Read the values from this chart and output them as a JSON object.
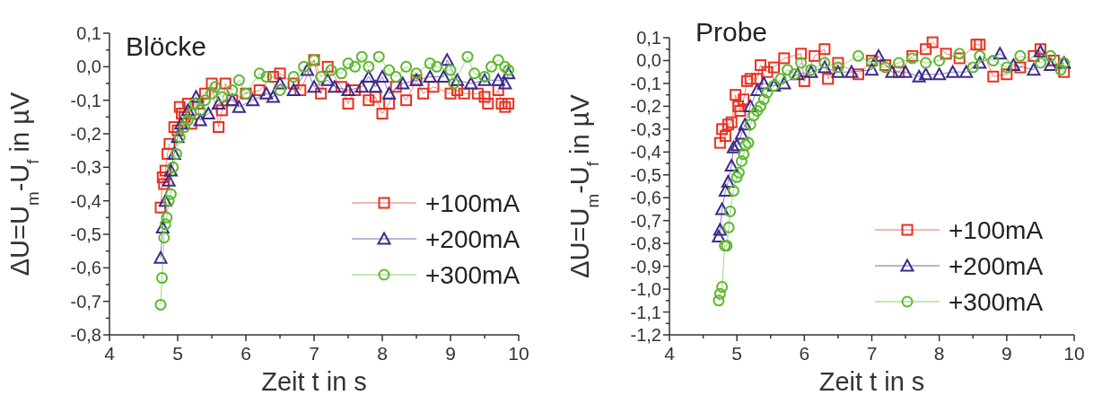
{
  "chart_data": [
    {
      "type": "line",
      "title": "Blöcke",
      "xlabel": "Zeit t in s",
      "ylabel": "ΔU=U$_{m}$-U$_{f}$ in µV",
      "legend": "bottom right",
      "xlim": [
        4,
        10
      ],
      "ylim": [
        -0.8,
        0.1
      ],
      "xticks": [
        4,
        {
          "value": 4.5,
          "label": null
        },
        5,
        {
          "value": 5.5,
          "label": null
        },
        6,
        {
          "value": 6.5,
          "label": null
        },
        7,
        {
          "value": 7.5,
          "label": null
        },
        8,
        {
          "value": 8.5,
          "label": null
        },
        9,
        {
          "value": 9.5,
          "label": null
        },
        10
      ],
      "yticks": [
        {
          "value": -0.8,
          "label": "-0,8"
        },
        {
          "value": -0.75,
          "label": null
        },
        {
          "value": -0.7,
          "label": "-0,7"
        },
        {
          "value": -0.65,
          "label": null
        },
        {
          "value": -0.6,
          "label": "-0,6"
        },
        {
          "value": -0.55,
          "label": null
        },
        {
          "value": -0.5,
          "label": "-0,5"
        },
        {
          "value": -0.45,
          "label": null
        },
        {
          "value": -0.4,
          "label": "-0,4"
        },
        {
          "value": -0.35,
          "label": null
        },
        {
          "value": -0.3,
          "label": "-0,3"
        },
        {
          "value": -0.25,
          "label": null
        },
        {
          "value": -0.2,
          "label": "-0,2"
        },
        {
          "value": -0.15,
          "label": null
        },
        {
          "value": -0.1,
          "label": "-0,1"
        },
        {
          "value": -0.05,
          "label": null
        },
        {
          "value": 0,
          "label": "0,0"
        },
        {
          "value": 0.05,
          "label": null
        },
        {
          "value": 0.1,
          "label": "0,1"
        }
      ],
      "series": [
        {
          "name": "+100mA",
          "color": "#e8311f",
          "marker": "square",
          "x": [
            4.75,
            4.78,
            4.8,
            4.82,
            4.85,
            4.88,
            4.9,
            4.95,
            5.0,
            5.03,
            5.06,
            5.1,
            5.15,
            5.2,
            5.3,
            5.4,
            5.5,
            5.6,
            5.65,
            5.7,
            5.8,
            6.0,
            6.2,
            6.4,
            6.5,
            6.7,
            6.8,
            7.0,
            7.1,
            7.2,
            7.4,
            7.5,
            7.6,
            7.8,
            7.9,
            8.0,
            8.1,
            8.2,
            8.35,
            8.5,
            8.6,
            8.75,
            9.0,
            9.1,
            9.2,
            9.4,
            9.5,
            9.55,
            9.7,
            9.75,
            9.8,
            9.85
          ],
          "values": [
            -0.42,
            -0.33,
            -0.35,
            -0.31,
            -0.26,
            -0.23,
            null,
            -0.18,
            -0.19,
            -0.12,
            -0.14,
            -0.15,
            -0.11,
            -0.17,
            -0.11,
            -0.08,
            -0.05,
            -0.18,
            -0.13,
            -0.05,
            -0.1,
            -0.08,
            -0.07,
            -0.03,
            -0.02,
            -0.05,
            -0.07,
            0.02,
            -0.08,
            0.0,
            -0.06,
            -0.11,
            -0.07,
            -0.1,
            -0.09,
            -0.14,
            -0.11,
            -0.06,
            -0.1,
            -0.04,
            -0.08,
            -0.06,
            -0.08,
            -0.07,
            -0.08,
            -0.08,
            -0.09,
            -0.11,
            -0.07,
            -0.11,
            -0.12,
            -0.11
          ]
        },
        {
          "name": "+200mA",
          "color": "#3b2a8e",
          "marker": "triangle",
          "x": [
            4.75,
            4.78,
            4.82,
            4.87,
            4.9,
            4.95,
            5.0,
            5.05,
            5.15,
            5.27,
            5.33,
            5.45,
            5.6,
            5.8,
            5.9,
            6.1,
            6.3,
            6.4,
            6.5,
            6.7,
            6.9,
            7.0,
            7.2,
            7.3,
            7.5,
            7.7,
            7.8,
            7.9,
            8.0,
            8.1,
            8.3,
            8.5,
            8.7,
            8.9,
            8.95,
            9.1,
            9.3,
            9.5,
            9.7,
            9.8,
            9.85
          ],
          "values": [
            -0.57,
            -0.48,
            -0.4,
            -0.34,
            -0.31,
            -0.26,
            -0.21,
            -0.17,
            -0.13,
            -0.09,
            -0.16,
            -0.14,
            -0.11,
            -0.1,
            -0.12,
            -0.1,
            -0.08,
            -0.09,
            -0.05,
            -0.07,
            -0.01,
            -0.06,
            -0.04,
            -0.06,
            -0.07,
            -0.06,
            -0.03,
            -0.06,
            -0.03,
            -0.08,
            -0.05,
            -0.04,
            -0.03,
            -0.03,
            0.02,
            -0.04,
            -0.05,
            -0.04,
            -0.04,
            -0.05,
            -0.02
          ]
        },
        {
          "name": "+300mA",
          "color": "#5cb82e",
          "marker": "circle",
          "x": [
            4.75,
            4.77,
            4.8,
            4.82,
            4.84,
            4.87,
            4.9,
            4.93,
            4.98,
            5.03,
            5.1,
            5.15,
            5.2,
            5.25,
            5.33,
            5.4,
            5.5,
            5.55,
            5.65,
            5.8,
            5.9,
            6.0,
            6.2,
            6.3,
            6.5,
            6.7,
            6.85,
            7.0,
            7.1,
            7.25,
            7.4,
            7.5,
            7.6,
            7.7,
            7.8,
            7.95,
            8.1,
            8.2,
            8.35,
            8.5,
            8.7,
            8.8,
            9.0,
            9.05,
            9.25,
            9.35,
            9.5,
            9.6,
            9.7,
            9.8,
            9.85
          ],
          "values": [
            -0.71,
            -0.63,
            -0.51,
            -0.47,
            -0.45,
            -0.4,
            -0.38,
            -0.3,
            -0.26,
            -0.21,
            -0.18,
            -0.16,
            -0.14,
            -0.11,
            -0.13,
            -0.1,
            -0.08,
            -0.06,
            -0.09,
            -0.07,
            -0.04,
            -0.08,
            -0.02,
            -0.03,
            -0.07,
            -0.03,
            0.0,
            0.02,
            -0.03,
            -0.01,
            -0.02,
            0.01,
            0.0,
            0.03,
            0.0,
            0.03,
            -0.01,
            -0.03,
            0.0,
            -0.02,
            0.01,
            0.0,
            -0.01,
            -0.05,
            0.03,
            -0.02,
            -0.03,
            0.0,
            0.02,
            0.0,
            -0.01
          ]
        }
      ]
    },
    {
      "type": "line",
      "title": "Probe",
      "xlabel": "Zeit t in s",
      "ylabel": "ΔU=U$_{m}$-U$_{f}$ in µV",
      "legend": "bottom right",
      "xlim": [
        4,
        10
      ],
      "ylim": [
        -1.2,
        0.1
      ],
      "xticks": [
        4,
        {
          "value": 4.5,
          "label": null
        },
        5,
        {
          "value": 5.5,
          "label": null
        },
        6,
        {
          "value": 6.5,
          "label": null
        },
        7,
        {
          "value": 7.5,
          "label": null
        },
        8,
        {
          "value": 8.5,
          "label": null
        },
        9,
        {
          "value": 9.5,
          "label": null
        },
        10
      ],
      "yticks": [
        {
          "value": -1.2,
          "label": "-1,2"
        },
        {
          "value": -1.15,
          "label": null
        },
        {
          "value": -1.1,
          "label": "-1,1"
        },
        {
          "value": -1.05,
          "label": null
        },
        {
          "value": -1.0,
          "label": "-1,0"
        },
        {
          "value": -0.95,
          "label": null
        },
        {
          "value": -0.9,
          "label": "-0,9"
        },
        {
          "value": -0.85,
          "label": null
        },
        {
          "value": -0.8,
          "label": "-0,8"
        },
        {
          "value": -0.75,
          "label": null
        },
        {
          "value": -0.7,
          "label": "-0,7"
        },
        {
          "value": -0.65,
          "label": null
        },
        {
          "value": -0.6,
          "label": "-0,6"
        },
        {
          "value": -0.55,
          "label": null
        },
        {
          "value": -0.5,
          "label": "-0,5"
        },
        {
          "value": -0.45,
          "label": null
        },
        {
          "value": -0.4,
          "label": "-0,4"
        },
        {
          "value": -0.35,
          "label": null
        },
        {
          "value": -0.3,
          "label": "-0,3"
        },
        {
          "value": -0.25,
          "label": null
        },
        {
          "value": -0.2,
          "label": "-0,2"
        },
        {
          "value": -0.15,
          "label": null
        },
        {
          "value": -0.1,
          "label": "-0,1"
        },
        {
          "value": -0.05,
          "label": null
        },
        {
          "value": 0,
          "label": "0,0"
        },
        {
          "value": 0.05,
          "label": null
        },
        {
          "value": 0.1,
          "label": "0,1"
        }
      ],
      "series": [
        {
          "name": "+100mA",
          "color": "#e8311f",
          "marker": "square",
          "x": [
            4.75,
            4.78,
            4.83,
            4.87,
            4.92,
            4.98,
            5.02,
            5.05,
            5.1,
            5.15,
            5.2,
            5.3,
            5.35,
            5.45,
            5.55,
            5.7,
            5.95,
            6.0,
            6.15,
            6.3,
            6.35,
            6.5,
            6.8,
            7.0,
            7.2,
            7.4,
            7.6,
            7.8,
            7.9,
            8.1,
            8.3,
            8.55,
            8.6,
            8.8,
            9.0,
            9.2,
            9.4,
            9.5,
            9.7,
            9.85
          ],
          "values": [
            -0.36,
            -0.3,
            -0.33,
            -0.28,
            -0.27,
            -0.15,
            -0.2,
            -0.22,
            -0.17,
            -0.09,
            -0.08,
            -0.08,
            -0.02,
            -0.05,
            -0.03,
            0.01,
            0.03,
            -0.09,
            0.02,
            0.05,
            -0.08,
            -0.01,
            -0.06,
            0.0,
            -0.02,
            -0.05,
            0.02,
            0.05,
            0.08,
            0.03,
            0.01,
            0.07,
            0.07,
            -0.07,
            -0.06,
            -0.03,
            0.02,
            0.05,
            0.0,
            -0.05
          ]
        },
        {
          "name": "+200mA",
          "color": "#3b2a8e",
          "marker": "triangle",
          "x": [
            4.73,
            4.75,
            4.78,
            4.83,
            4.87,
            4.92,
            4.95,
            5.0,
            5.07,
            5.12,
            5.2,
            5.3,
            5.4,
            5.55,
            5.7,
            5.9,
            6.1,
            6.3,
            6.5,
            6.7,
            7.0,
            7.1,
            7.3,
            7.5,
            7.7,
            7.8,
            8.0,
            8.2,
            8.4,
            8.6,
            8.9,
            9.1,
            9.4,
            9.5,
            9.65,
            9.85
          ],
          "values": [
            -0.77,
            -0.74,
            -0.65,
            -0.57,
            -0.53,
            -0.46,
            -0.38,
            -0.37,
            -0.32,
            -0.28,
            -0.2,
            -0.13,
            -0.1,
            -0.11,
            -0.1,
            -0.06,
            -0.05,
            -0.03,
            -0.05,
            -0.05,
            -0.04,
            0.02,
            -0.05,
            -0.05,
            -0.07,
            -0.06,
            -0.06,
            -0.05,
            -0.05,
            -0.01,
            0.03,
            -0.02,
            -0.04,
            0.04,
            -0.02,
            -0.01
          ]
        },
        {
          "name": "+300mA",
          "color": "#5cb82e",
          "marker": "circle",
          "x": [
            4.73,
            4.75,
            4.78,
            4.82,
            4.85,
            4.88,
            4.9,
            4.95,
            5.0,
            5.03,
            5.07,
            5.1,
            5.13,
            5.17,
            5.2,
            5.25,
            5.3,
            5.35,
            5.4,
            5.45,
            5.55,
            5.65,
            5.75,
            5.85,
            5.95,
            6.1,
            6.3,
            6.5,
            6.8,
            7.0,
            7.2,
            7.4,
            7.6,
            7.8,
            8.0,
            8.3,
            8.5,
            8.6,
            8.8,
            9.0,
            9.2,
            9.5,
            9.65,
            9.8,
            9.85
          ],
          "values": [
            -1.05,
            -1.02,
            -0.99,
            -0.81,
            -0.81,
            -0.73,
            -0.66,
            -0.57,
            -0.51,
            -0.49,
            -0.44,
            -0.41,
            -0.37,
            -0.36,
            -0.28,
            -0.24,
            -0.22,
            -0.2,
            -0.17,
            -0.14,
            -0.11,
            -0.08,
            -0.04,
            -0.06,
            -0.01,
            -0.04,
            -0.01,
            -0.03,
            0.02,
            -0.01,
            -0.03,
            -0.01,
            0.01,
            -0.01,
            0.0,
            0.03,
            -0.03,
            0.02,
            0.0,
            -0.03,
            0.02,
            -0.01,
            0.02,
            -0.04,
            -0.01
          ]
        }
      ]
    }
  ]
}
